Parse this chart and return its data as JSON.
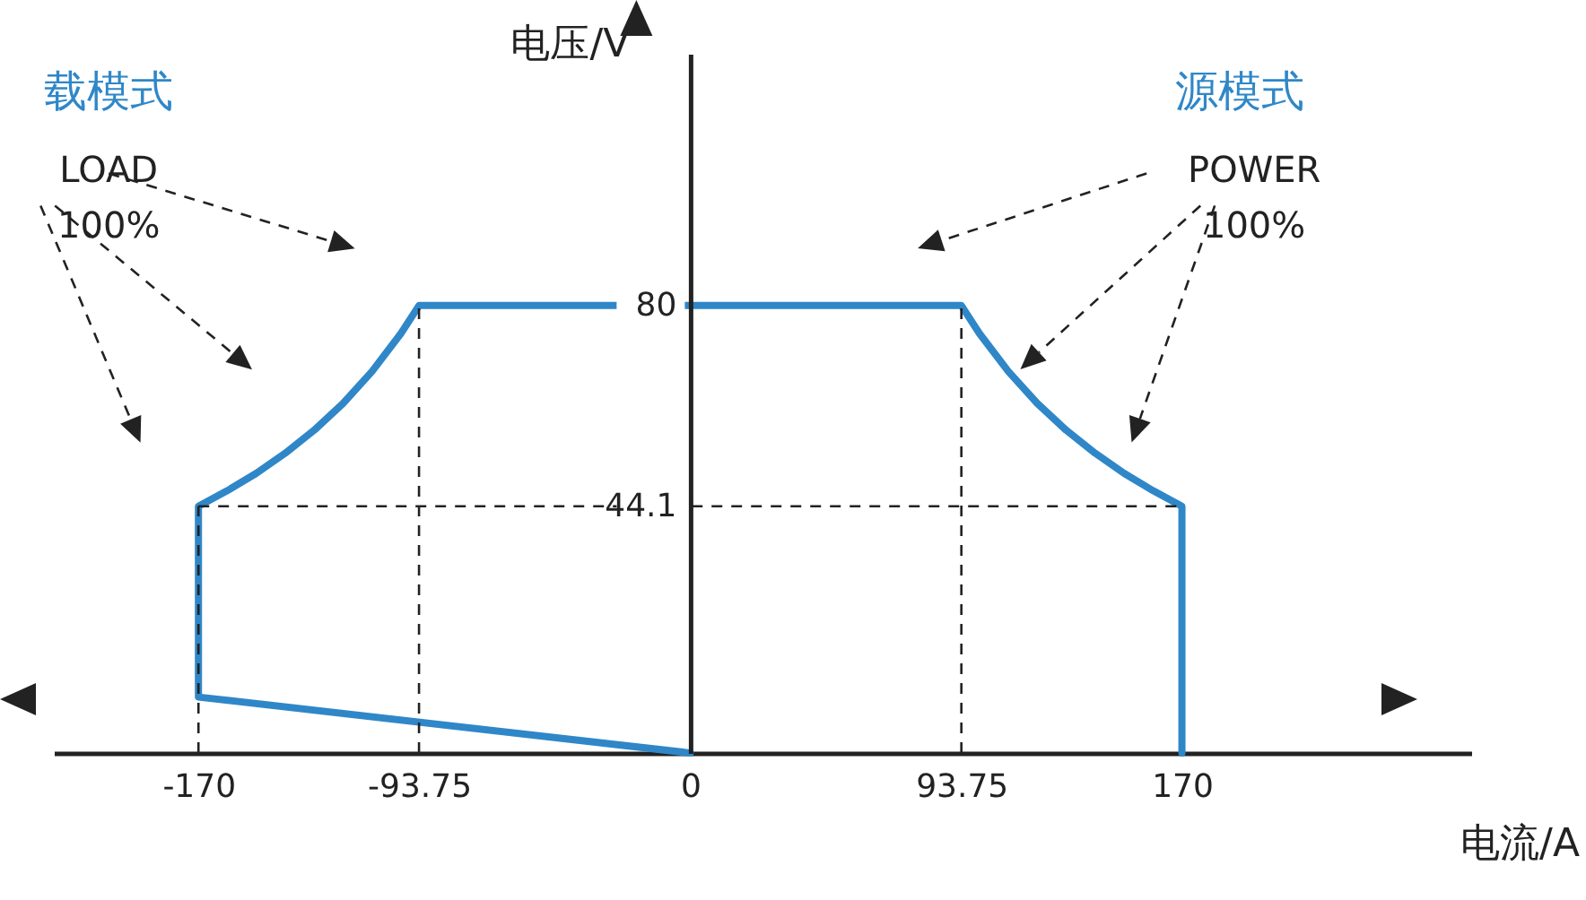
{
  "chart_data": {
    "type": "line",
    "xlabel": "电流/A",
    "ylabel": "电压/V",
    "x": [
      0,
      -170,
      -170,
      -160,
      -150,
      -140,
      -130,
      -120,
      -110,
      -100,
      -93.75,
      93.75,
      100,
      110,
      120,
      130,
      140,
      150,
      160,
      170,
      170
    ],
    "series": [
      {
        "color": "#2f87c8",
        "values": [
          0,
          10,
          44.1,
          46.9,
          50,
          53.6,
          57.7,
          62.5,
          68.2,
          75,
          80,
          80,
          75,
          68.2,
          62.5,
          57.7,
          53.6,
          50,
          46.9,
          44.1,
          0
        ]
      }
    ],
    "xlim": [
      -220,
      270
    ],
    "ylim": [
      0,
      125
    ],
    "xticks": [
      -170,
      {
        "value": -93.75,
        "label": "-93.75"
      },
      0,
      {
        "value": 93.75,
        "label": "93.75"
      },
      170
    ],
    "yticks": [
      {
        "value": 44.1,
        "label": "44.1"
      },
      80
    ],
    "ref_lines": [
      {
        "axis": "x",
        "value": -170,
        "line_style": "dashed"
      },
      {
        "axis": "x",
        "value": -93.75,
        "line_style": "dashed"
      },
      {
        "axis": "x",
        "value": 93.75,
        "line_style": "dashed"
      },
      {
        "axis": "y",
        "value": 44.1,
        "line_style": "dashed"
      }
    ],
    "annotations": [
      "载模式",
      "LOAD",
      "100%",
      "源模式",
      "POWER",
      "100%"
    ],
    "grid": false,
    "legend": false,
    "marker": "none",
    "line_style": "solid"
  }
}
